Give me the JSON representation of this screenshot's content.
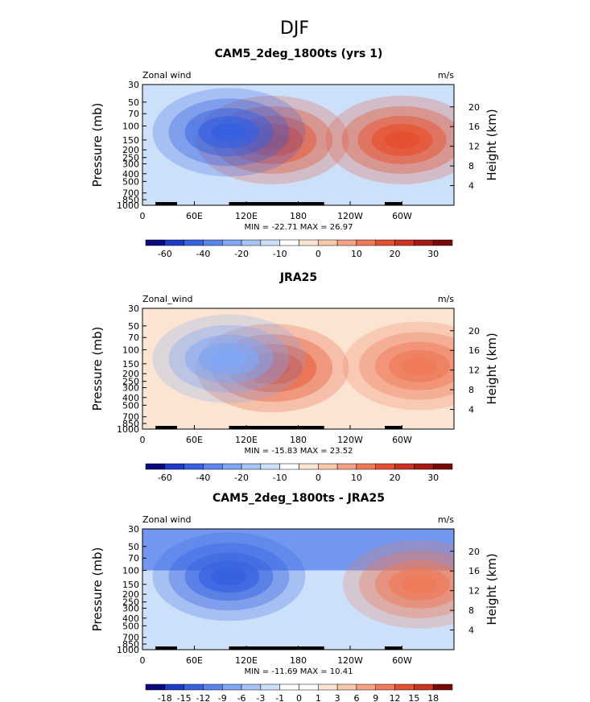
{
  "page": {
    "main_title": "DJF"
  },
  "colors": {
    "frame": "#000000",
    "land": "#000000"
  },
  "chart_data": [
    {
      "type": "heatmap",
      "title": "CAM5_2deg_1800ts (yrs 1)",
      "left_label": "Zonal wind",
      "right_label": "m/s",
      "ylabel": "Pressure (mb)",
      "ylabel_right": "Height (km)",
      "x_ticks": [
        "0",
        "60E",
        "120E",
        "180",
        "120W",
        "60W"
      ],
      "y_ticks": [
        "30",
        "50",
        "70",
        "100",
        "150",
        "200",
        "250",
        "300",
        "400",
        "500",
        "700",
        "850",
        "1000"
      ],
      "height_ticks": [
        "20",
        "16",
        "12",
        "8",
        "4"
      ],
      "min_max_text": "MIN = -22.71   MAX =  26.97",
      "levels": [
        "-60",
        "-40",
        "-20",
        "-10",
        "0",
        "10",
        "20",
        "30"
      ],
      "colorbar": [
        "#0a0a80",
        "#1d3bc7",
        "#3761e0",
        "#5a85ee",
        "#80a6f4",
        "#a6c4f7",
        "#cde0fa",
        "#ffffff",
        "#fbe4d2",
        "#f9c7a9",
        "#f4a283",
        "#ee7a5a",
        "#e5512f",
        "#cc3320",
        "#a51b12",
        "#7a0a08"
      ],
      "features": [
        {
          "kind": "background",
          "value": -5,
          "color": "#cde0fa"
        },
        {
          "kind": "blob",
          "label": "subtropical jet NH-Pacific",
          "lon": 150,
          "plev": 150,
          "value": 26.97,
          "color": "#e5512f"
        },
        {
          "kind": "blob",
          "label": "jet N.America",
          "lon": 300,
          "plev": 150,
          "value": 25,
          "color": "#e5512f"
        },
        {
          "kind": "blob",
          "label": "easterlies",
          "lon": 100,
          "plev": 120,
          "value": -22.71,
          "color": "#3761e0"
        }
      ]
    },
    {
      "type": "heatmap",
      "title": "JRA25",
      "left_label": "Zonal_wind",
      "right_label": "m/s",
      "ylabel": "Pressure (mb)",
      "ylabel_right": "Height (km)",
      "x_ticks": [
        "0",
        "60E",
        "120E",
        "180",
        "120W",
        "60W"
      ],
      "y_ticks": [
        "30",
        "50",
        "70",
        "100",
        "150",
        "200",
        "250",
        "300",
        "400",
        "500",
        "700",
        "850",
        "1000"
      ],
      "height_ticks": [
        "20",
        "16",
        "12",
        "8",
        "4"
      ],
      "min_max_text": "MIN = -15.83   MAX =  23.52",
      "levels": [
        "-60",
        "-40",
        "-20",
        "-10",
        "0",
        "10",
        "20",
        "30"
      ],
      "colorbar": [
        "#0a0a80",
        "#1d3bc7",
        "#3761e0",
        "#5a85ee",
        "#80a6f4",
        "#a6c4f7",
        "#cde0fa",
        "#ffffff",
        "#fbe4d2",
        "#f9c7a9",
        "#f4a283",
        "#ee7a5a",
        "#e5512f",
        "#cc3320",
        "#a51b12",
        "#7a0a08"
      ],
      "features": [
        {
          "kind": "background",
          "value": 3,
          "color": "#fbe4d2"
        },
        {
          "kind": "blob",
          "label": "subtropical jet Pacific",
          "lon": 150,
          "plev": 170,
          "value": 23.52,
          "color": "#e5512f"
        },
        {
          "kind": "blob",
          "label": "jet Atlantic",
          "lon": 320,
          "plev": 160,
          "value": 20,
          "color": "#ee7a5a"
        },
        {
          "kind": "blob",
          "label": "easterlies",
          "lon": 100,
          "plev": 130,
          "value": -15.83,
          "color": "#80a6f4"
        }
      ]
    },
    {
      "type": "heatmap",
      "title": "CAM5_2deg_1800ts - JRA25",
      "left_label": "Zonal wind",
      "right_label": "m/s",
      "ylabel": "Pressure (mb)",
      "ylabel_right": "Height (km)",
      "x_ticks": [
        "0",
        "60E",
        "120E",
        "180",
        "120W",
        "60W"
      ],
      "y_ticks": [
        "30",
        "50",
        "70",
        "100",
        "150",
        "200",
        "250",
        "300",
        "400",
        "500",
        "700",
        "850",
        "1000"
      ],
      "height_ticks": [
        "20",
        "16",
        "12",
        "8",
        "4"
      ],
      "min_max_text": "MIN = -11.69   MAX =  10.41",
      "levels": [
        "-18",
        "-15",
        "-12",
        "-9",
        "-6",
        "-3",
        "-1",
        "0",
        "1",
        "3",
        "6",
        "9",
        "12",
        "15",
        "18"
      ],
      "colorbar": [
        "#0a0a80",
        "#1d3bc7",
        "#3761e0",
        "#5a85ee",
        "#80a6f4",
        "#a6c4f7",
        "#cde0fa",
        "#ffffff",
        "#ffffff",
        "#fbe4d2",
        "#f9c7a9",
        "#f4a283",
        "#ee7a5a",
        "#e5512f",
        "#cc3320",
        "#7a0a08"
      ],
      "features": [
        {
          "kind": "background",
          "value": -2,
          "color": "#cde0fa"
        },
        {
          "kind": "band",
          "label": "upper negative bias",
          "value": -8,
          "color": "#5a85ee"
        },
        {
          "kind": "blob",
          "label": "positive bias Atlantic",
          "lon": 320,
          "plev": 150,
          "value": 10.41,
          "color": "#ee7a5a"
        },
        {
          "kind": "blob",
          "label": "negative bias W Pacific",
          "lon": 100,
          "plev": 120,
          "value": -11.69,
          "color": "#3761e0"
        }
      ]
    }
  ]
}
